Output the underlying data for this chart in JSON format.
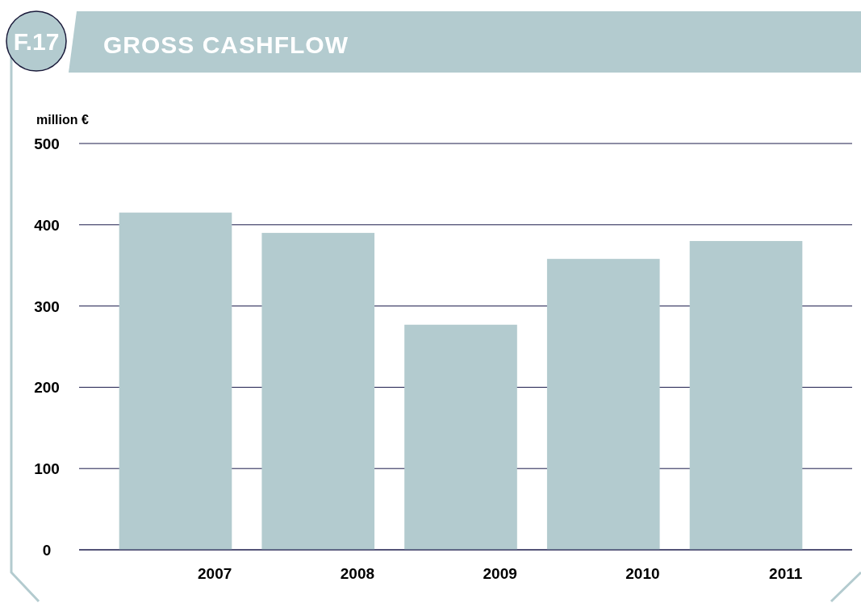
{
  "chart_data": {
    "type": "bar",
    "title": "GROSS CASHFLOW",
    "annotations": [
      "F.17"
    ],
    "ylabel": "million €",
    "categories": [
      "2007",
      "2008",
      "2009",
      "2010",
      "2011"
    ],
    "values": [
      415,
      390,
      277,
      358,
      380
    ],
    "color": "#b3cbcf",
    "ylim": [
      0,
      500
    ],
    "yticks": [
      0,
      100,
      200,
      300,
      400,
      500
    ],
    "grid": "y"
  }
}
